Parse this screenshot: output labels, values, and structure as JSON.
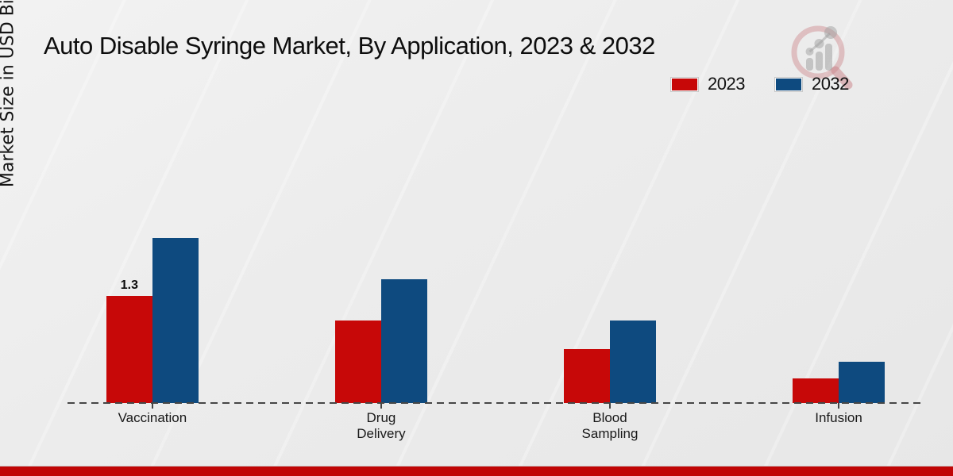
{
  "title": "Auto Disable Syringe Market, By Application, 2023 & 2032",
  "ylabel": "Market Size in USD Billion",
  "colors": {
    "series_2023": "#c70808",
    "series_2032": "#0e4a7f",
    "footer_stripe": "#c00505",
    "axis_dash": "#464646"
  },
  "logo": {
    "name": "market-research-future-watermark"
  },
  "chart_data": {
    "type": "bar",
    "categories": [
      "Vaccination",
      "Drug\nDelivery",
      "Blood\nSampling",
      "Infusion"
    ],
    "series": [
      {
        "name": "2023",
        "color": "#c70808",
        "values": [
          1.3,
          1.0,
          0.65,
          0.3
        ]
      },
      {
        "name": "2032",
        "color": "#0e4a7f",
        "values": [
          2.0,
          1.5,
          1.0,
          0.5
        ]
      }
    ],
    "data_labels": [
      [
        "1.3",
        null,
        null,
        null
      ],
      [
        null,
        null,
        null,
        null
      ]
    ],
    "title": "Auto Disable Syringe Market, By Application, 2023 & 2032",
    "xlabel": "",
    "ylabel": "Market Size in USD Billion",
    "ylim": [
      0,
      2.2
    ],
    "grid": false,
    "y_axis_ticks_visible": false,
    "baseline_style": "dashed",
    "legend_position": "top-right"
  }
}
